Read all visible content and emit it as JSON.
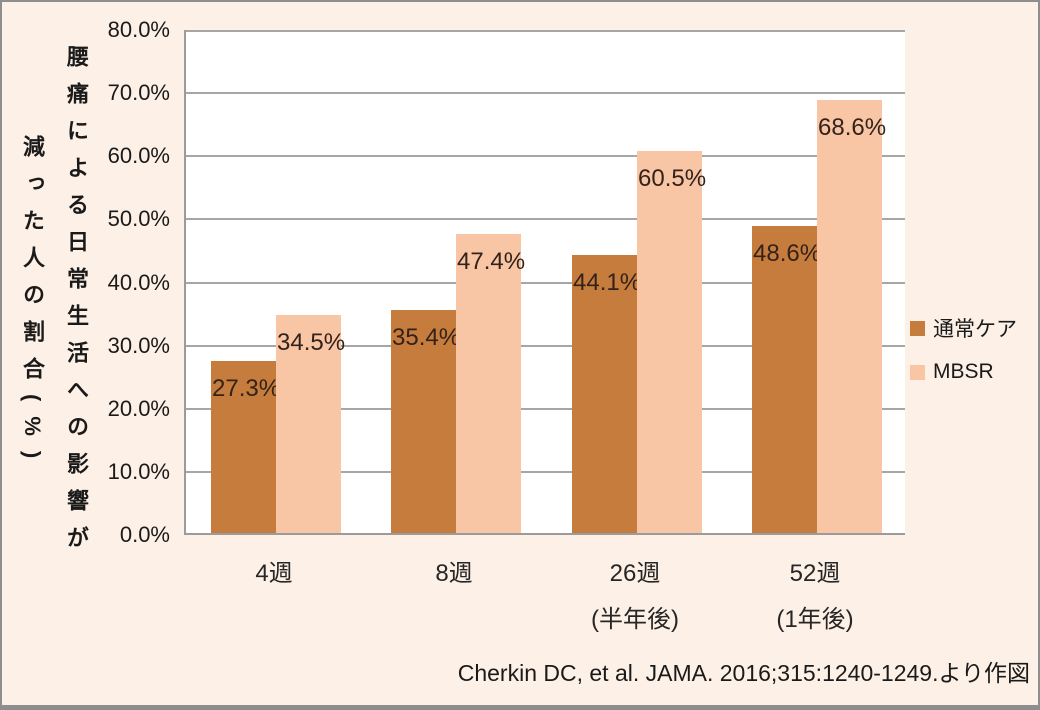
{
  "chart_data": {
    "type": "bar",
    "title": "",
    "categories": [
      "4週",
      "8週",
      "26週\n(半年後)",
      "52週\n(1年後)"
    ],
    "series": [
      {
        "key": "usual-care",
        "name": "通常ケア",
        "color": "#c67c3c",
        "values": [
          27.3,
          35.4,
          44.1,
          48.6
        ],
        "data_labels": [
          "27.3%",
          "35.4%",
          "44.1%",
          "48.6%"
        ]
      },
      {
        "key": "mbsr",
        "name": "MBSR",
        "color": "#f8c5a5",
        "values": [
          34.5,
          47.4,
          60.5,
          68.6
        ],
        "data_labels": [
          "34.5%",
          "47.4%",
          "60.5%",
          "68.6%"
        ]
      }
    ],
    "xlabel": "",
    "ylabel": "腰痛による日常生活への影響が\n減った人の割合(%)",
    "ylim": [
      0,
      80
    ],
    "ytick_labels": [
      "0.0%",
      "10.0%",
      "20.0%",
      "30.0%",
      "40.0%",
      "50.0%",
      "60.0%",
      "70.0%",
      "80.0%"
    ],
    "grid": true,
    "legend_position": "right",
    "source_note": "Cherkin DC, et al. JAMA. 2016;315:1240-1249.より作図"
  },
  "colors": {
    "background": "#fdf0e6",
    "plot_background": "#ffffff",
    "gridline": "#a6a6a6",
    "axis_line": "#9b9b9b",
    "frame_border": "#8e8e8e",
    "tick_text": "#1a1a1a",
    "data_label_text": "#33221a",
    "series_usual_care": "#c67c3c",
    "series_mbsr": "#f8c5a5"
  }
}
